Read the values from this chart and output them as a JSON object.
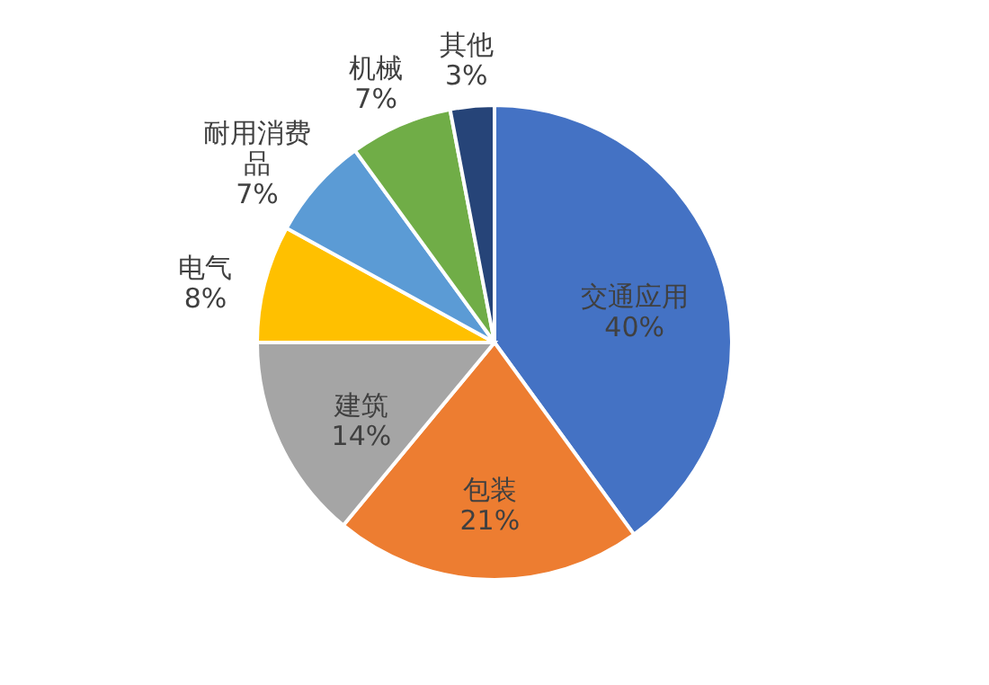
{
  "chart_data": {
    "type": "pie",
    "categories": [
      "交通应用",
      "包装",
      "建筑",
      "电气",
      "耐用消费品",
      "机械",
      "其他"
    ],
    "values": [
      40,
      21,
      14,
      8,
      7,
      7,
      3
    ],
    "colors": [
      "#4472c4",
      "#ed7d31",
      "#a5a5a5",
      "#ffc000",
      "#5b9bd5",
      "#70ad47",
      "#264478"
    ],
    "value_labels": [
      "40%",
      "21%",
      "14%",
      "8%",
      "7%",
      "7%",
      "3%"
    ]
  }
}
